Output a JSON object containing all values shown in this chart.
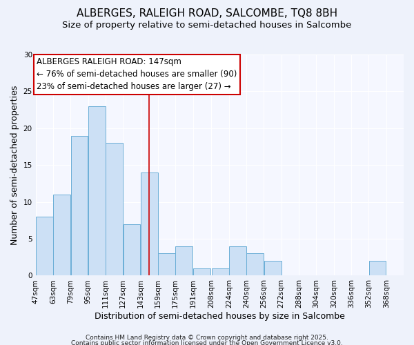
{
  "title": "ALBERGES, RALEIGH ROAD, SALCOMBE, TQ8 8BH",
  "subtitle": "Size of property relative to semi-detached houses in Salcombe",
  "xlabel": "Distribution of semi-detached houses by size in Salcombe",
  "ylabel": "Number of semi-detached properties",
  "bar_left_edges": [
    47,
    63,
    79,
    95,
    111,
    127,
    143,
    159,
    175,
    191,
    208,
    224,
    240,
    256,
    272,
    288,
    304,
    320,
    336,
    352
  ],
  "bar_heights": [
    8,
    11,
    19,
    23,
    18,
    7,
    14,
    3,
    4,
    1,
    1,
    4,
    3,
    2,
    0,
    0,
    0,
    0,
    0,
    2
  ],
  "bin_width": 16,
  "bar_color": "#cce0f5",
  "bar_edge_color": "#6baed6",
  "vline_x": 151,
  "vline_color": "#cc0000",
  "ylim": [
    0,
    30
  ],
  "yticks": [
    0,
    5,
    10,
    15,
    20,
    25,
    30
  ],
  "xlim_left": 47,
  "xlim_right": 384,
  "xtick_positions": [
    47,
    63,
    79,
    95,
    111,
    127,
    143,
    159,
    175,
    191,
    208,
    224,
    240,
    256,
    272,
    288,
    304,
    320,
    336,
    352,
    368
  ],
  "xtick_labels": [
    "47sqm",
    "63sqm",
    "79sqm",
    "95sqm",
    "111sqm",
    "127sqm",
    "143sqm",
    "159sqm",
    "175sqm",
    "191sqm",
    "208sqm",
    "224sqm",
    "240sqm",
    "256sqm",
    "272sqm",
    "288sqm",
    "304sqm",
    "320sqm",
    "336sqm",
    "352sqm",
    "368sqm"
  ],
  "annotation_title": "ALBERGES RALEIGH ROAD: 147sqm",
  "annotation_line1": "← 76% of semi-detached houses are smaller (90)",
  "annotation_line2": "23% of semi-detached houses are larger (27) →",
  "annotation_box_color": "#ffffff",
  "annotation_box_edge": "#cc0000",
  "footnote1": "Contains HM Land Registry data © Crown copyright and database right 2025.",
  "footnote2": "Contains public sector information licensed under the Open Government Licence v3.0.",
  "bg_color": "#eef2fb",
  "plot_bg_color": "#f5f7ff",
  "title_fontsize": 11,
  "subtitle_fontsize": 9.5,
  "axis_label_fontsize": 9,
  "tick_fontsize": 7.5,
  "annotation_fontsize": 8.5,
  "footnote_fontsize": 6.5
}
